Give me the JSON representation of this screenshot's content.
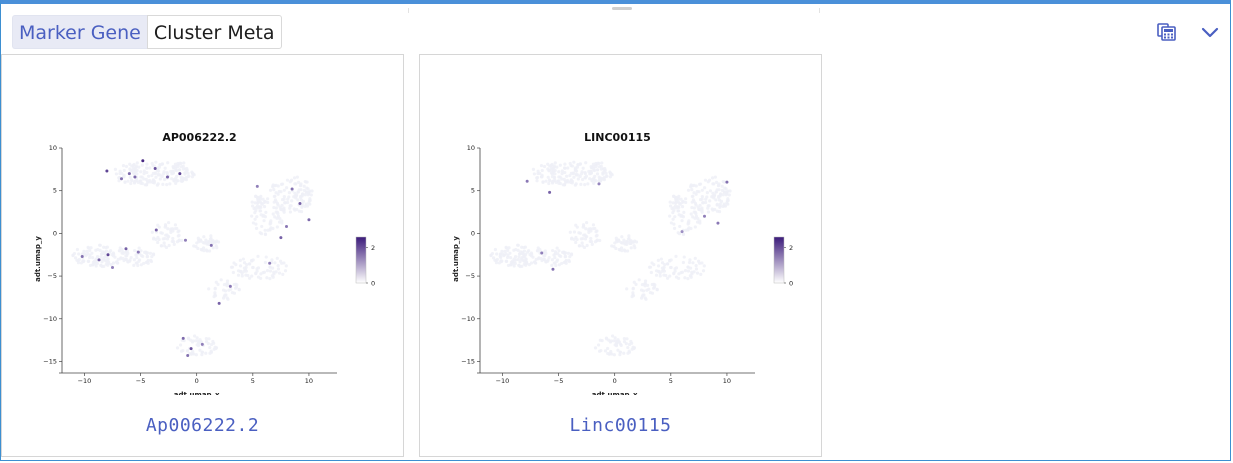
{
  "tabs": [
    {
      "label": "Marker Gene",
      "active": true
    },
    {
      "label": "Cluster Meta",
      "active": false
    }
  ],
  "toolbar": {
    "icons": [
      "calculator-icon",
      "chevron-down-icon"
    ]
  },
  "colors": {
    "accent": "#4a5fc1",
    "frame": "#4a90d9",
    "low": "#ffffff",
    "high": "#3b1a7a"
  },
  "cards": [
    {
      "caption": "Ap006222.2",
      "chart_data": {
        "type": "scatter",
        "title": "AP006222.2",
        "xlabel": "adt.umap_x",
        "ylabel": "adt.umap_y",
        "xticks": [
          "−10",
          "−5",
          "0",
          "5",
          "10"
        ],
        "yticks": [
          "10",
          "5",
          "0",
          "−5",
          "−10",
          "−15"
        ],
        "xlim": [
          -12,
          12.5
        ],
        "ylim": [
          -16,
          10
        ],
        "legend_ticks": [
          "2",
          "0"
        ],
        "legend_range": [
          0,
          2.6
        ],
        "highlight_points": [
          {
            "x": -8,
            "y": 7.3,
            "v": 2
          },
          {
            "x": -6,
            "y": 7,
            "v": 1.5
          },
          {
            "x": -4.8,
            "y": 8.5,
            "v": 2.4
          },
          {
            "x": -3.7,
            "y": 7.6,
            "v": 1.8
          },
          {
            "x": -2.6,
            "y": 6.6,
            "v": 1.6
          },
          {
            "x": -1.5,
            "y": 7,
            "v": 2
          },
          {
            "x": -6.7,
            "y": 6.4,
            "v": 1.4
          },
          {
            "x": -5.5,
            "y": 6.6,
            "v": 1.5
          },
          {
            "x": -10.2,
            "y": -2.7,
            "v": 1.4
          },
          {
            "x": -8.7,
            "y": -3.1,
            "v": 1.5
          },
          {
            "x": -7.9,
            "y": -2.5,
            "v": 2
          },
          {
            "x": -6.3,
            "y": -1.8,
            "v": 1.6
          },
          {
            "x": -5.2,
            "y": -2.2,
            "v": 1.3
          },
          {
            "x": -7.5,
            "y": -4,
            "v": 1.2
          },
          {
            "x": -3.6,
            "y": 0.4,
            "v": 1.6
          },
          {
            "x": -1,
            "y": -0.8,
            "v": 1.2
          },
          {
            "x": 1.3,
            "y": -1.4,
            "v": 1.4
          },
          {
            "x": 5.4,
            "y": 5.5,
            "v": 1.2
          },
          {
            "x": 8.5,
            "y": 5.2,
            "v": 1.4
          },
          {
            "x": 9.2,
            "y": 3.5,
            "v": 1.6
          },
          {
            "x": 10,
            "y": 1.6,
            "v": 1.5
          },
          {
            "x": 8,
            "y": 0.8,
            "v": 1.3
          },
          {
            "x": 7.5,
            "y": -0.5,
            "v": 1.6
          },
          {
            "x": 6.5,
            "y": -3.5,
            "v": 1.2
          },
          {
            "x": 3,
            "y": -6.2,
            "v": 1.3
          },
          {
            "x": 2,
            "y": -8.2,
            "v": 1.6
          },
          {
            "x": -1.2,
            "y": -12.3,
            "v": 1.5
          },
          {
            "x": -0.5,
            "y": -13.5,
            "v": 1.8
          },
          {
            "x": 0.5,
            "y": -13,
            "v": 1.2
          },
          {
            "x": -0.8,
            "y": -14.3,
            "v": 1.4
          }
        ]
      }
    },
    {
      "caption": "Linc00115",
      "chart_data": {
        "type": "scatter",
        "title": "LINC00115",
        "xlabel": "adt.umap_x",
        "ylabel": "adt.umap_y",
        "xticks": [
          "−10",
          "−5",
          "0",
          "5",
          "10"
        ],
        "yticks": [
          "10",
          "5",
          "0",
          "−5",
          "−10",
          "−15"
        ],
        "xlim": [
          -12,
          12.5
        ],
        "ylim": [
          -16,
          10
        ],
        "legend_ticks": [
          "2",
          "0"
        ],
        "legend_range": [
          0,
          2.6
        ],
        "highlight_points": [
          {
            "x": -7.8,
            "y": 6.1,
            "v": 1.3
          },
          {
            "x": -5.8,
            "y": 4.8,
            "v": 1.6
          },
          {
            "x": -1.4,
            "y": 5.8,
            "v": 1.1
          },
          {
            "x": -6.5,
            "y": -2.3,
            "v": 1.2
          },
          {
            "x": -5.5,
            "y": -4.2,
            "v": 1.4
          },
          {
            "x": 10,
            "y": 6,
            "v": 1.4
          },
          {
            "x": 8,
            "y": 2,
            "v": 1.2
          },
          {
            "x": 9.2,
            "y": 1.2,
            "v": 1.3
          },
          {
            "x": 6,
            "y": 0.2,
            "v": 1.0
          }
        ]
      }
    }
  ]
}
